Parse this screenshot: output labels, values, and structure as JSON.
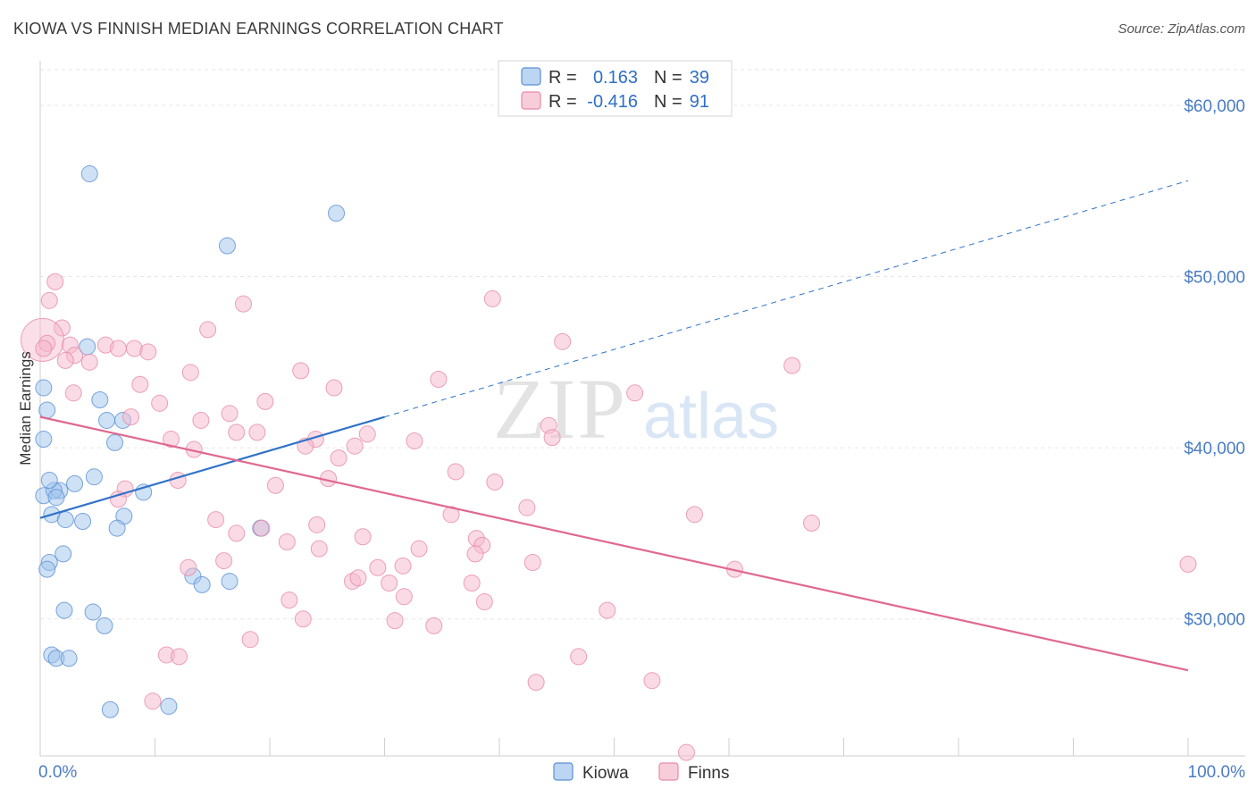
{
  "header": {
    "title": "KIOWA VS FINNISH MEDIAN EARNINGS CORRELATION CHART",
    "source": "Source: ZipAtlas.com"
  },
  "watermark": {
    "zip": "ZIP",
    "atlas": "atlas"
  },
  "legend_top": [
    {
      "r_label": "R =",
      "r_value": "0.163",
      "n_label": "N =",
      "n_value": "39",
      "color": "#9ec3ec"
    },
    {
      "r_label": "R =",
      "r_value": "-0.416",
      "n_label": "N =",
      "n_value": "91",
      "color": "#f5b8cb"
    }
  ],
  "legend_bottom": [
    {
      "label": "Kiowa",
      "color": "#9ec3ec"
    },
    {
      "label": "Finns",
      "color": "#f5b8cb"
    }
  ],
  "chart_data": {
    "type": "scatter",
    "title": "KIOWA VS FINNISH MEDIAN EARNINGS CORRELATION CHART",
    "ylabel": "Median Earnings",
    "xlabel": "",
    "xlim": [
      0,
      100
    ],
    "ylim": [
      22000,
      61000
    ],
    "x_tick_labels": [
      "0.0%",
      "100.0%"
    ],
    "y_ticks": [
      30000,
      40000,
      50000,
      60000
    ],
    "y_tick_labels": [
      "$30,000",
      "$40,000",
      "$50,000",
      "$60,000"
    ],
    "grid": true,
    "series": [
      {
        "name": "Kiowa",
        "color": "#9ec3ec",
        "stroke": "#5b8fd4",
        "trend_color": "#2f72c9",
        "trend": {
          "x0": 0,
          "y0": 35900,
          "x1": 30,
          "y1": 41800,
          "dashed_to_x": 100,
          "dashed_to_y": 55600
        },
        "points": [
          [
            4.3,
            56000
          ],
          [
            25.8,
            53700
          ],
          [
            16.3,
            51800
          ],
          [
            4.1,
            45900
          ],
          [
            0.3,
            43500
          ],
          [
            5.2,
            42800
          ],
          [
            0.6,
            42200
          ],
          [
            5.8,
            41600
          ],
          [
            7.2,
            41600
          ],
          [
            0.3,
            40500
          ],
          [
            6.5,
            40300
          ],
          [
            4.7,
            38300
          ],
          [
            3.0,
            37900
          ],
          [
            1.7,
            37500
          ],
          [
            0.3,
            37200
          ],
          [
            1.2,
            37500
          ],
          [
            9.0,
            37400
          ],
          [
            1.4,
            37100
          ],
          [
            1.0,
            36100
          ],
          [
            7.3,
            36000
          ],
          [
            2.2,
            35800
          ],
          [
            3.7,
            35700
          ],
          [
            6.7,
            35300
          ],
          [
            19.2,
            35300
          ],
          [
            2.0,
            33800
          ],
          [
            0.8,
            33300
          ],
          [
            0.6,
            32900
          ],
          [
            13.3,
            32500
          ],
          [
            14.1,
            32000
          ],
          [
            16.5,
            32200
          ],
          [
            2.1,
            30500
          ],
          [
            4.6,
            30400
          ],
          [
            5.6,
            29600
          ],
          [
            1.0,
            27900
          ],
          [
            1.4,
            27700
          ],
          [
            2.5,
            27700
          ],
          [
            6.1,
            24700
          ],
          [
            11.2,
            24900
          ],
          [
            0.8,
            38100
          ]
        ]
      },
      {
        "name": "Finns",
        "color": "#f5b8cb",
        "stroke": "#e88aa8",
        "trend_color": "#e0688f",
        "trend": {
          "x0": 0,
          "y0": 41800,
          "x1": 100,
          "y1": 27000
        },
        "points": [
          [
            1.3,
            49700
          ],
          [
            0.8,
            48600
          ],
          [
            39.4,
            48700
          ],
          [
            17.7,
            48400
          ],
          [
            1.9,
            47000
          ],
          [
            14.6,
            46900
          ],
          [
            0.2,
            46300
          ],
          [
            2.6,
            46000
          ],
          [
            5.7,
            46000
          ],
          [
            6.8,
            45800
          ],
          [
            8.2,
            45800
          ],
          [
            9.4,
            45600
          ],
          [
            3.0,
            45400
          ],
          [
            4.3,
            45000
          ],
          [
            45.5,
            46200
          ],
          [
            65.5,
            44800
          ],
          [
            13.1,
            44400
          ],
          [
            22.7,
            44500
          ],
          [
            34.7,
            44000
          ],
          [
            8.7,
            43700
          ],
          [
            25.6,
            43500
          ],
          [
            2.9,
            43200
          ],
          [
            51.8,
            43200
          ],
          [
            10.4,
            42600
          ],
          [
            19.6,
            42700
          ],
          [
            7.9,
            41800
          ],
          [
            14.0,
            41600
          ],
          [
            16.5,
            42000
          ],
          [
            44.3,
            41300
          ],
          [
            17.1,
            40900
          ],
          [
            18.9,
            40900
          ],
          [
            28.5,
            40800
          ],
          [
            11.4,
            40500
          ],
          [
            24.0,
            40500
          ],
          [
            32.6,
            40400
          ],
          [
            13.4,
            39900
          ],
          [
            23.1,
            40100
          ],
          [
            27.4,
            40100
          ],
          [
            26.0,
            39400
          ],
          [
            44.6,
            40600
          ],
          [
            36.2,
            38600
          ],
          [
            12.0,
            38100
          ],
          [
            25.1,
            38200
          ],
          [
            39.6,
            38000
          ],
          [
            7.4,
            37600
          ],
          [
            20.5,
            37800
          ],
          [
            6.8,
            37000
          ],
          [
            42.4,
            36500
          ],
          [
            35.8,
            36100
          ],
          [
            57.0,
            36100
          ],
          [
            15.3,
            35800
          ],
          [
            24.1,
            35500
          ],
          [
            67.2,
            35600
          ],
          [
            17.1,
            35000
          ],
          [
            19.3,
            35300
          ],
          [
            28.1,
            34800
          ],
          [
            38.0,
            34700
          ],
          [
            38.5,
            34300
          ],
          [
            21.5,
            34500
          ],
          [
            24.3,
            34100
          ],
          [
            33.0,
            34100
          ],
          [
            37.9,
            33800
          ],
          [
            16.0,
            33400
          ],
          [
            42.9,
            33300
          ],
          [
            29.4,
            33000
          ],
          [
            31.6,
            33100
          ],
          [
            12.9,
            33000
          ],
          [
            60.5,
            32900
          ],
          [
            27.2,
            32200
          ],
          [
            27.7,
            32400
          ],
          [
            30.4,
            32100
          ],
          [
            37.6,
            32100
          ],
          [
            100.0,
            33200
          ],
          [
            31.7,
            31300
          ],
          [
            21.7,
            31100
          ],
          [
            38.7,
            31000
          ],
          [
            49.4,
            30500
          ],
          [
            22.9,
            30000
          ],
          [
            30.9,
            29900
          ],
          [
            34.3,
            29600
          ],
          [
            18.3,
            28800
          ],
          [
            11.0,
            27900
          ],
          [
            12.1,
            27800
          ],
          [
            46.9,
            27800
          ],
          [
            43.2,
            26300
          ],
          [
            53.3,
            26400
          ],
          [
            9.8,
            25200
          ],
          [
            56.3,
            22200
          ],
          [
            0.6,
            46100
          ],
          [
            0.3,
            45800
          ],
          [
            2.2,
            45100
          ]
        ]
      }
    ]
  }
}
